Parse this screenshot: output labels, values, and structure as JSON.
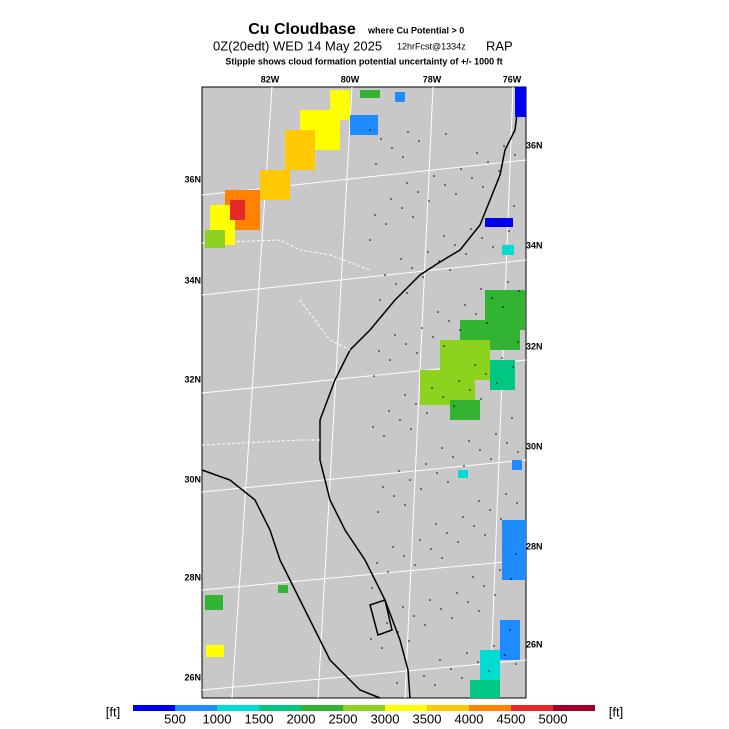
{
  "header": {
    "title": "Cu Cloudbase",
    "title_note": "where Cu Potential > 0",
    "valid": "0Z(20edt) WED 14 May 2025",
    "forecast": "12hrFcst@1334z",
    "model": "RAP",
    "stipple_note": "Stipple shows cloud formation potential uncertainty of +/-  1000 ft"
  },
  "map": {
    "lon_labels": [
      "82W",
      "80W",
      "78W",
      "76W"
    ],
    "lat_labels_left": [
      "36N",
      "34N",
      "32N",
      "30N",
      "28N",
      "26N"
    ],
    "lat_labels_right": [
      "36N",
      "34N",
      "32N",
      "30N",
      "28N",
      "26N"
    ]
  },
  "legend": {
    "unit_left": "[ft]",
    "unit_right": "[ft]",
    "labels": [
      500,
      1000,
      1500,
      2000,
      2500,
      3000,
      3500,
      4000,
      4500,
      5000
    ],
    "colors": [
      "#0000f0",
      "#1e8cff",
      "#00dcd2",
      "#00c882",
      "#32b432",
      "#8cd21e",
      "#ffff00",
      "#ffc800",
      "#ff8200",
      "#e62828",
      "#a00028",
      "#640096"
    ]
  }
}
